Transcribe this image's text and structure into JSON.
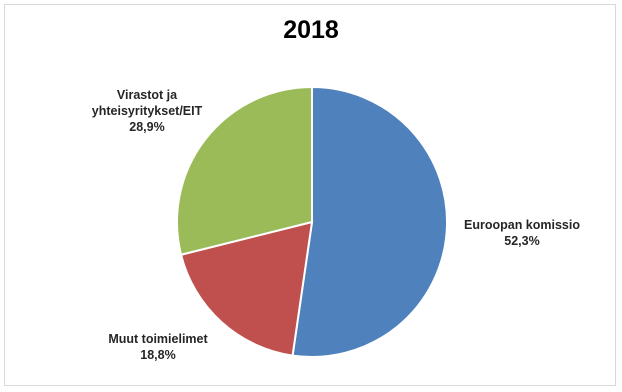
{
  "chart_data": {
    "type": "pie",
    "title": "2018",
    "slices": [
      {
        "label": "Euroopan komissio",
        "value": 52.3,
        "value_label": "52,3%",
        "color": "#4f81bd"
      },
      {
        "label": "Muut toimielimet",
        "value": 18.8,
        "value_label": "18,8%",
        "color": "#c0504d"
      },
      {
        "label": "Virastot ja yhteisyritykset/EIT",
        "value": 28.9,
        "value_label": "28,9%",
        "color": "#9bbb59"
      }
    ],
    "start_angle": "12 o'clock",
    "direction": "clockwise",
    "legend": "none"
  }
}
